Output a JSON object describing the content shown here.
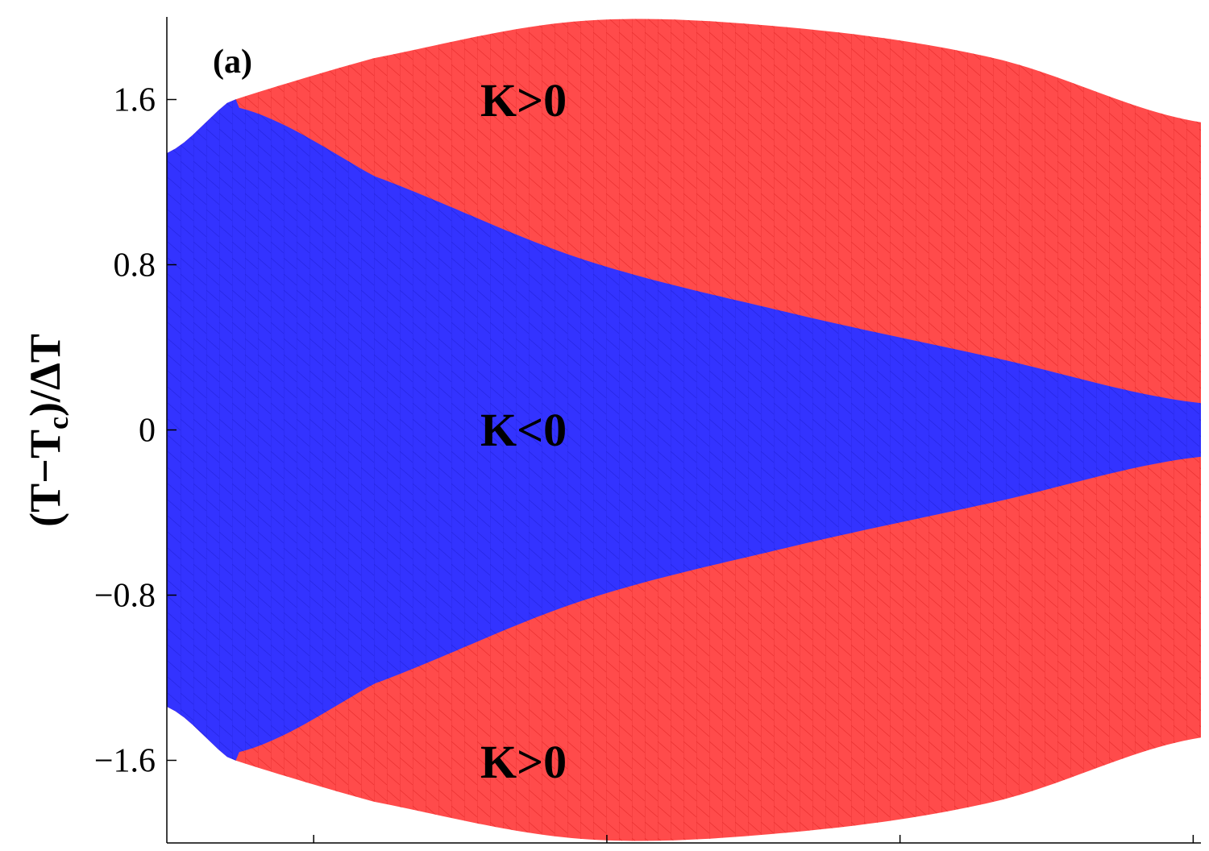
{
  "chart_data": {
    "type": "area",
    "panel_label": "(a)",
    "ylabel": {
      "main": "(T−T",
      "sub": "c",
      "tail": ")/ΔT"
    },
    "xlabel": "",
    "ylim": [
      -2.0,
      2.0
    ],
    "y_ticks": [
      1.6,
      0.8,
      0,
      -0.8,
      -1.6
    ],
    "y_tick_labels": [
      "1.6",
      "0.8",
      "0",
      "−0.8",
      "−1.6"
    ],
    "x_tick_count": 4,
    "grid": false,
    "colors": {
      "negative": "#3333ff",
      "positive": "#ff4b4b",
      "mesh_negative": "#1a1acc",
      "mesh_positive": "#d91a1a"
    },
    "regions": [
      {
        "id": "upper",
        "label": "K>0",
        "sign": "positive"
      },
      {
        "id": "middle",
        "label": "K<0",
        "sign": "negative"
      },
      {
        "id": "lower",
        "label": "K>0",
        "sign": "positive"
      }
    ],
    "outer_boundary": {
      "x_fraction": [
        0,
        0.06,
        0.2,
        0.4,
        0.6,
        0.8,
        1.0
      ],
      "y": [
        1.34,
        1.59,
        1.8,
        1.98,
        1.95,
        1.8,
        1.49
      ]
    },
    "sign_boundary": {
      "x_fraction": [
        0.07,
        0.2,
        0.4,
        0.6,
        0.8,
        1.0
      ],
      "y": [
        1.56,
        1.23,
        0.83,
        0.57,
        0.35,
        0.13
      ]
    }
  }
}
